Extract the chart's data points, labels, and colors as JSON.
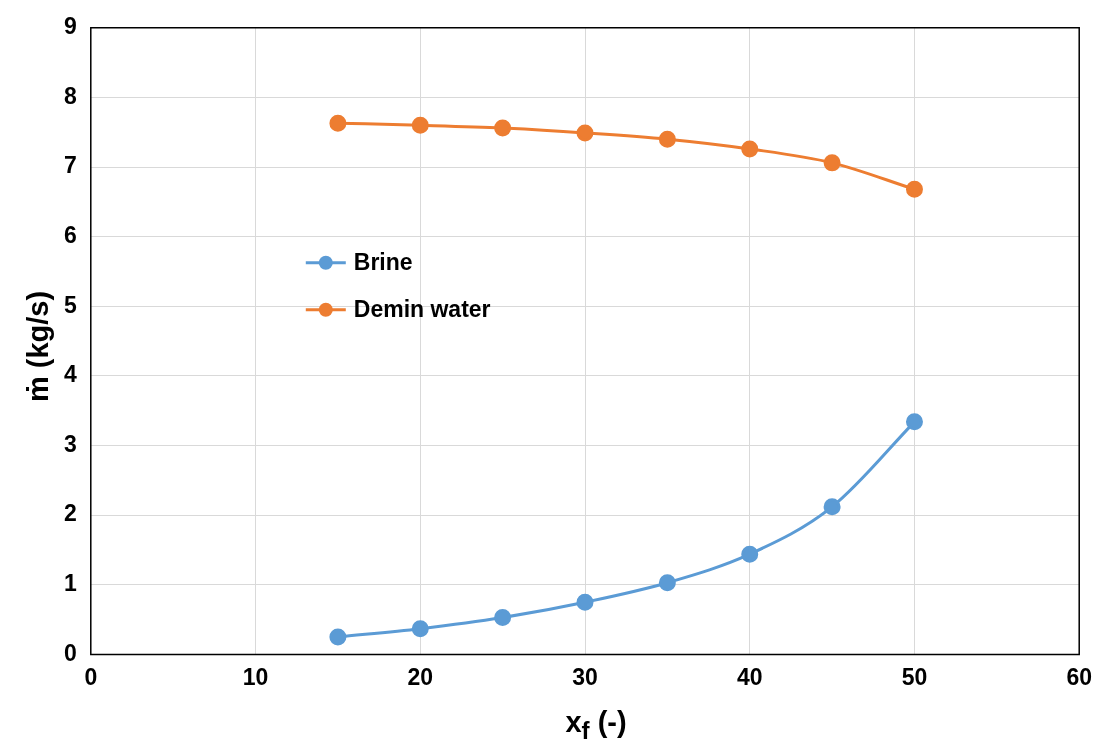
{
  "chart_data": {
    "type": "line",
    "xlabel": "x$_{f}$ (-)",
    "ylabel": "ṁ (kg/s)",
    "xlim": [
      0,
      60
    ],
    "xticks": [
      0,
      10,
      20,
      30,
      40,
      50,
      60
    ],
    "ylim": [
      0,
      9
    ],
    "yticks": [
      0,
      1,
      2,
      3,
      4,
      5,
      6,
      7,
      8,
      9
    ],
    "grid": true,
    "legend": "center left",
    "marker": "circle",
    "line_style": "solid",
    "x": [
      15,
      20,
      25,
      30,
      35,
      40,
      45,
      50
    ],
    "series": [
      {
        "name": "Brine",
        "color": "#5b9bd5",
        "values": [
          0.25,
          0.37,
          0.53,
          0.75,
          1.03,
          1.44,
          2.12,
          3.34
        ]
      },
      {
        "name": "Demin water",
        "color": "#ed7d31",
        "values": [
          7.63,
          7.6,
          7.56,
          7.49,
          7.4,
          7.26,
          7.06,
          6.68
        ]
      }
    ]
  }
}
